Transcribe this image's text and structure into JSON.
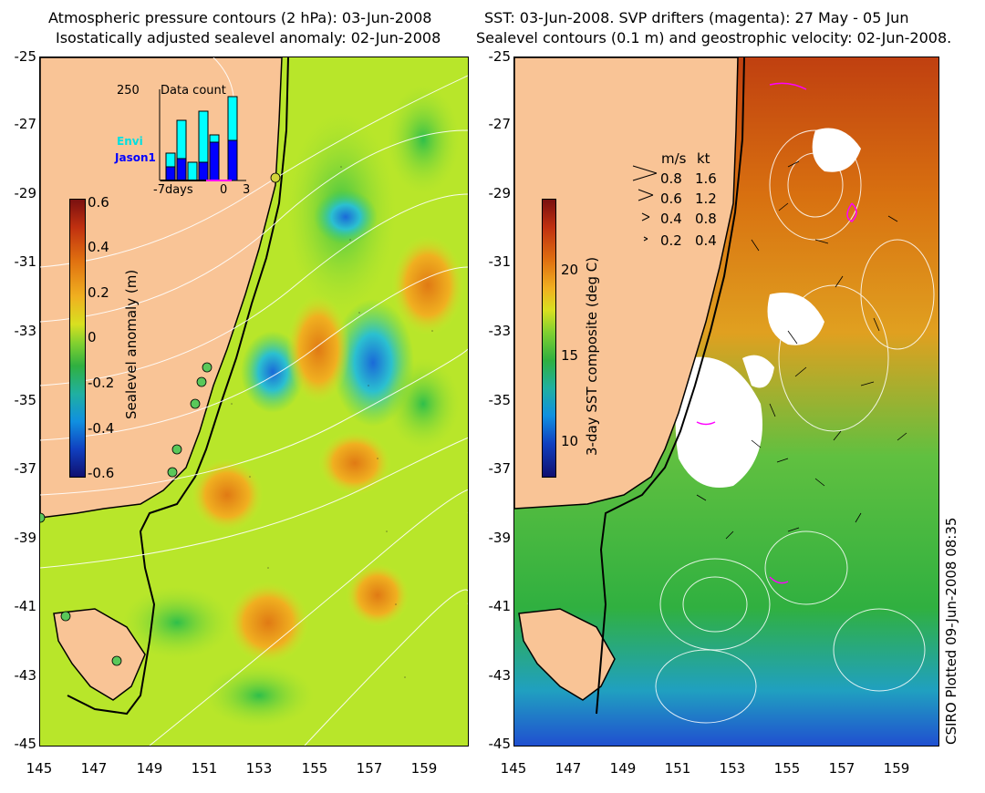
{
  "left_panel": {
    "title_line1": "Atmospheric pressure contours (2 hPa): 03-Jun-2008",
    "title_line2": "Isostatically adjusted sealevel anomaly: 02-Jun-2008",
    "colorbar": {
      "label": "Sealevel anomaly (m)",
      "ticks": [
        "0.6",
        "0.4",
        "0.2",
        "0",
        "-0.2",
        "-0.4",
        "-0.6"
      ]
    },
    "inset": {
      "title": "Data count",
      "ymax_label": "250",
      "envi_label": "Envi",
      "jason_label": "Jason1",
      "x_left_label": "-7days",
      "x_mid_label": "0",
      "x_right_label": "3",
      "envi_color": "#00ffff",
      "jason_color": "#0000ff",
      "bar_values_envi": [
        0,
        110,
        0,
        180,
        0,
        200,
        0,
        230
      ],
      "bar_values_jason": [
        0,
        40,
        0,
        55,
        0,
        70,
        0,
        100
      ]
    }
  },
  "right_panel": {
    "title_line1": "SST: 03-Jun-2008. SVP drifters (magenta): 27 May - 05 Jun",
    "title_line2": "Sealevel contours (0.1 m) and geostrophic velocity: 02-Jun-2008.",
    "colorbar": {
      "label": "3-day SST composite (deg C)",
      "ticks": [
        "20",
        "15",
        "10"
      ]
    },
    "speed_legend": {
      "header_ms": "m/s",
      "header_kt": "kt",
      "rows": [
        {
          "ms": "0.8",
          "kt": "1.6"
        },
        {
          "ms": "0.6",
          "kt": "1.2"
        },
        {
          "ms": "0.4",
          "kt": "0.8"
        },
        {
          "ms": "0.2",
          "kt": "0.4"
        }
      ]
    }
  },
  "axes": {
    "y_ticks": [
      "-25",
      "-27",
      "-29",
      "-31",
      "-33",
      "-35",
      "-37",
      "-39",
      "-41",
      "-43",
      "-45"
    ],
    "x_ticks": [
      "145",
      "147",
      "149",
      "151",
      "153",
      "155",
      "157",
      "159"
    ]
  },
  "credit": "CSIRO Plotted 09-Jun-2008 08:35",
  "colors": {
    "land": "#f9c496",
    "coast": "#000000",
    "contour": "#ffffff",
    "drifter": "#ff00ff"
  }
}
